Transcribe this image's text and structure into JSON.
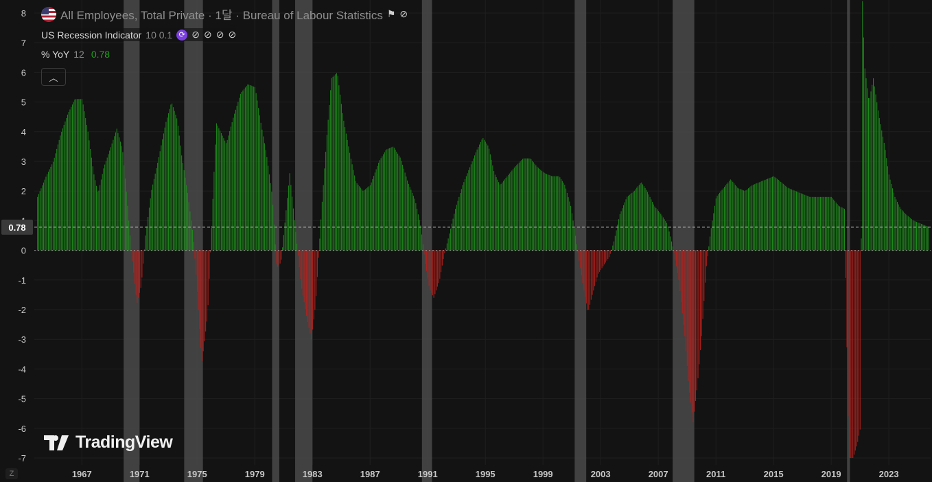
{
  "header": {
    "series_title": "All Employees, Total Private · 1달 · Bureau of Labour Statistics",
    "indicator_name": "US Recession Indicator",
    "indicator_params": "10 0.1",
    "yoy_name": "% YoY",
    "yoy_param": "12",
    "yoy_value": "0.78",
    "collapse_icon": "chevron-up-icon",
    "flag_icon": "us-flag-icon"
  },
  "brand": {
    "name": "TradingView"
  },
  "zoom_button": "Z",
  "colors": {
    "positive": "#1f8a1c",
    "negative": "#b3201c",
    "recession": "#4a4a4a",
    "background": "#131313"
  },
  "chart_data": {
    "type": "bar",
    "ylim": [
      -7,
      8.4
    ],
    "yticks": [
      -7,
      -6,
      -5,
      -4,
      -3,
      -2,
      -1,
      0,
      1,
      2,
      3,
      4,
      5,
      6,
      7,
      8
    ],
    "xlim": [
      1963.7,
      2025.9
    ],
    "xticks": [
      1967,
      1971,
      1975,
      1979,
      1983,
      1987,
      1991,
      1995,
      1999,
      2003,
      2007,
      2011,
      2015,
      2019,
      2023
    ],
    "current_value": 0.78,
    "recessions": [
      [
        1969.9,
        1971.0
      ],
      [
        1974.1,
        1975.4
      ],
      [
        1980.2,
        1980.7
      ],
      [
        1981.8,
        1983.0
      ],
      [
        1990.6,
        1991.3
      ],
      [
        2001.2,
        2002.0
      ],
      [
        2008.0,
        2009.5
      ],
      [
        2020.1,
        2020.3
      ]
    ],
    "series": [
      {
        "values": [
          [
            1963.9,
            1.8
          ],
          [
            1964.5,
            2.5
          ],
          [
            1965.0,
            3.0
          ],
          [
            1965.5,
            3.9
          ],
          [
            1966.0,
            4.6
          ],
          [
            1966.5,
            5.1
          ],
          [
            1967.0,
            5.1
          ],
          [
            1967.4,
            4.0
          ],
          [
            1967.8,
            2.6
          ],
          [
            1968.1,
            1.9
          ],
          [
            1968.5,
            2.8
          ],
          [
            1969.0,
            3.5
          ],
          [
            1969.4,
            4.1
          ],
          [
            1969.8,
            3.4
          ],
          [
            1970.1,
            1.8
          ],
          [
            1970.4,
            0.0
          ],
          [
            1970.8,
            -1.8
          ],
          [
            1971.1,
            -1.2
          ],
          [
            1971.4,
            0.5
          ],
          [
            1971.8,
            2.0
          ],
          [
            1972.3,
            3.1
          ],
          [
            1972.8,
            4.3
          ],
          [
            1973.2,
            5.0
          ],
          [
            1973.6,
            4.4
          ],
          [
            1973.9,
            3.2
          ],
          [
            1974.3,
            2.0
          ],
          [
            1974.7,
            0.5
          ],
          [
            1975.0,
            -1.5
          ],
          [
            1975.3,
            -3.8
          ],
          [
            1975.7,
            -2.2
          ],
          [
            1976.0,
            1.0
          ],
          [
            1976.3,
            4.3
          ],
          [
            1976.6,
            4.0
          ],
          [
            1977.0,
            3.6
          ],
          [
            1977.5,
            4.5
          ],
          [
            1978.0,
            5.3
          ],
          [
            1978.5,
            5.6
          ],
          [
            1979.0,
            5.5
          ],
          [
            1979.4,
            4.3
          ],
          [
            1979.8,
            3.2
          ],
          [
            1980.2,
            1.8
          ],
          [
            1980.5,
            -0.6
          ],
          [
            1980.8,
            -0.4
          ],
          [
            1981.1,
            1.1
          ],
          [
            1981.4,
            2.6
          ],
          [
            1981.8,
            0.7
          ],
          [
            1982.2,
            -1.2
          ],
          [
            1982.6,
            -2.3
          ],
          [
            1982.9,
            -3.0
          ],
          [
            1983.2,
            -1.8
          ],
          [
            1983.6,
            1.3
          ],
          [
            1984.0,
            4.0
          ],
          [
            1984.3,
            5.8
          ],
          [
            1984.7,
            6.0
          ],
          [
            1985.1,
            4.5
          ],
          [
            1985.6,
            3.2
          ],
          [
            1986.0,
            2.3
          ],
          [
            1986.5,
            2.0
          ],
          [
            1987.0,
            2.2
          ],
          [
            1987.6,
            3.0
          ],
          [
            1988.1,
            3.4
          ],
          [
            1988.6,
            3.5
          ],
          [
            1989.1,
            3.1
          ],
          [
            1989.6,
            2.3
          ],
          [
            1990.1,
            1.7
          ],
          [
            1990.5,
            0.8
          ],
          [
            1990.8,
            -0.4
          ],
          [
            1991.1,
            -1.3
          ],
          [
            1991.4,
            -1.6
          ],
          [
            1991.8,
            -1.0
          ],
          [
            1992.1,
            -0.2
          ],
          [
            1992.5,
            0.6
          ],
          [
            1992.9,
            1.4
          ],
          [
            1993.4,
            2.2
          ],
          [
            1993.9,
            2.8
          ],
          [
            1994.4,
            3.4
          ],
          [
            1994.8,
            3.8
          ],
          [
            1995.2,
            3.5
          ],
          [
            1995.6,
            2.6
          ],
          [
            1996.0,
            2.2
          ],
          [
            1996.5,
            2.5
          ],
          [
            1997.0,
            2.8
          ],
          [
            1997.6,
            3.1
          ],
          [
            1998.1,
            3.1
          ],
          [
            1998.6,
            2.8
          ],
          [
            1999.1,
            2.6
          ],
          [
            1999.6,
            2.5
          ],
          [
            2000.1,
            2.5
          ],
          [
            2000.5,
            2.2
          ],
          [
            2000.9,
            1.5
          ],
          [
            2001.2,
            0.6
          ],
          [
            2001.5,
            -0.4
          ],
          [
            2001.8,
            -1.3
          ],
          [
            2002.1,
            -2.1
          ],
          [
            2002.4,
            -1.5
          ],
          [
            2002.8,
            -0.8
          ],
          [
            2003.2,
            -0.5
          ],
          [
            2003.6,
            -0.2
          ],
          [
            2003.9,
            0.3
          ],
          [
            2004.3,
            1.2
          ],
          [
            2004.8,
            1.8
          ],
          [
            2005.3,
            2.0
          ],
          [
            2005.8,
            2.3
          ],
          [
            2006.2,
            2.0
          ],
          [
            2006.7,
            1.5
          ],
          [
            2007.2,
            1.2
          ],
          [
            2007.6,
            0.9
          ],
          [
            2008.0,
            0.1
          ],
          [
            2008.4,
            -1.0
          ],
          [
            2008.8,
            -2.8
          ],
          [
            2009.1,
            -4.6
          ],
          [
            2009.4,
            -5.8
          ],
          [
            2009.7,
            -4.5
          ],
          [
            2010.0,
            -2.8
          ],
          [
            2010.3,
            -0.6
          ],
          [
            2010.6,
            0.6
          ],
          [
            2011.0,
            1.8
          ],
          [
            2011.5,
            2.1
          ],
          [
            2012.0,
            2.4
          ],
          [
            2012.5,
            2.1
          ],
          [
            2013.0,
            2.0
          ],
          [
            2013.5,
            2.2
          ],
          [
            2014.0,
            2.3
          ],
          [
            2014.5,
            2.4
          ],
          [
            2015.0,
            2.5
          ],
          [
            2015.5,
            2.3
          ],
          [
            2016.0,
            2.1
          ],
          [
            2016.5,
            2.0
          ],
          [
            2017.0,
            1.9
          ],
          [
            2017.5,
            1.8
          ],
          [
            2018.0,
            1.8
          ],
          [
            2018.5,
            1.8
          ],
          [
            2019.0,
            1.8
          ],
          [
            2019.5,
            1.5
          ],
          [
            2019.9,
            1.4
          ],
          [
            2020.2,
            -7.0
          ],
          [
            2020.5,
            -7.0
          ],
          [
            2020.8,
            -6.5
          ],
          [
            2021.0,
            -6.0
          ],
          [
            2021.15,
            8.4
          ],
          [
            2021.3,
            6.2
          ],
          [
            2021.6,
            5.0
          ],
          [
            2021.9,
            5.8
          ],
          [
            2022.3,
            4.5
          ],
          [
            2022.7,
            3.5
          ],
          [
            2023.0,
            2.5
          ],
          [
            2023.4,
            1.8
          ],
          [
            2023.8,
            1.4
          ],
          [
            2024.2,
            1.2
          ],
          [
            2024.7,
            1.0
          ],
          [
            2025.2,
            0.9
          ],
          [
            2025.8,
            0.78
          ]
        ]
      }
    ]
  }
}
